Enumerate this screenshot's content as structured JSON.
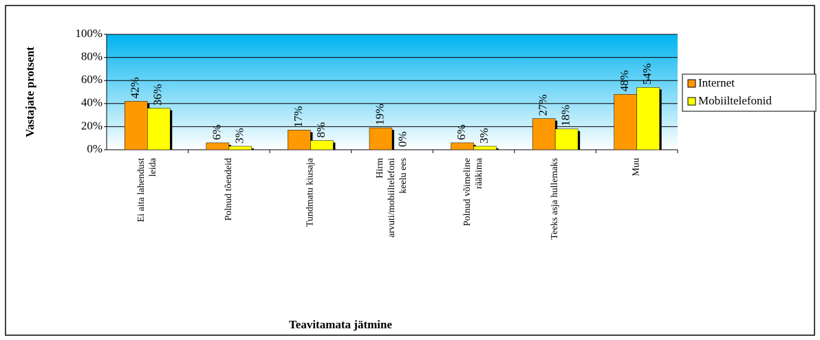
{
  "chart_data": {
    "type": "bar",
    "categories": [
      "Ei aita lahendust\nleida",
      "Polnud tõendeid",
      "Tundmatu kiusaja",
      "Hirm\narvuti/mobiiltelefoni\nkeelu ees",
      "Polnud võimeline\nrääkima",
      "Teeks asja hullemaks",
      "Muu"
    ],
    "series": [
      {
        "name": "Internet",
        "color": "#ff9900",
        "values": [
          42,
          6,
          17,
          19,
          6,
          27,
          48
        ],
        "value_labels": [
          "42%",
          "6%",
          "17%",
          "19%",
          "6%",
          "27%",
          "48%"
        ]
      },
      {
        "name": "Mobiiltelefonid",
        "color": "#ffff00",
        "values": [
          36,
          3,
          8,
          0,
          3,
          18,
          54
        ],
        "value_labels": [
          "36%",
          "3%",
          "8%",
          "0%",
          "3%",
          "18%",
          "54%"
        ]
      }
    ],
    "ylabel": "Vastajate protsent",
    "xlabel": "Teavitamata jätmine",
    "ylim": [
      0,
      100
    ],
    "yticks": [
      {
        "value": 0,
        "label": "0%"
      },
      {
        "value": 20,
        "label": "20%"
      },
      {
        "value": 40,
        "label": "40%"
      },
      {
        "value": 60,
        "label": "60%"
      },
      {
        "value": 80,
        "label": "80%"
      },
      {
        "value": 100,
        "label": "100%"
      }
    ],
    "grid": true,
    "legend": "right"
  }
}
